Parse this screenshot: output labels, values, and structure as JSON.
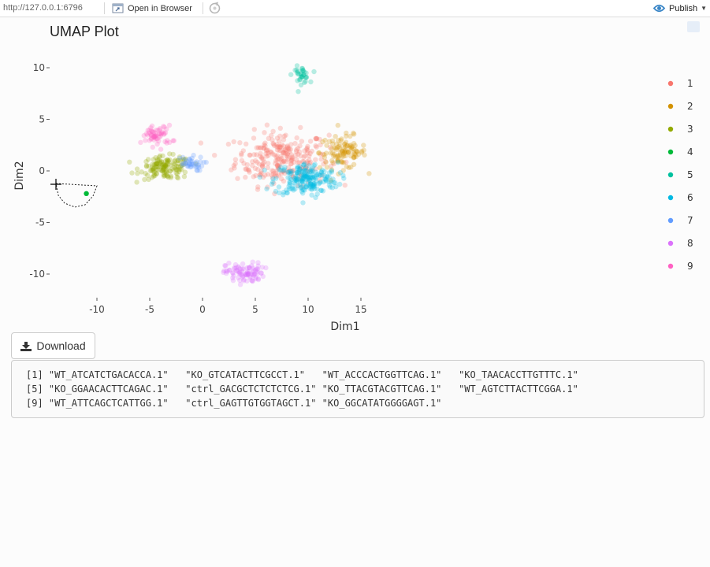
{
  "toolbar": {
    "url": "http://127.0.0.1:6796",
    "open_in_browser": "Open in Browser",
    "publish": "Publish"
  },
  "chart_data": {
    "type": "scatter",
    "title": "UMAP Plot",
    "xlabel": "Dim1",
    "ylabel": "Dim2",
    "xlim": [
      -12.5,
      17.5
    ],
    "ylim": [
      -11.8,
      11
    ],
    "x_ticks": [
      -10,
      -5,
      0,
      5,
      10,
      15
    ],
    "y_ticks": [
      -10,
      -5,
      0,
      5,
      10
    ],
    "legend_position": "right",
    "series": [
      {
        "name": "1",
        "color": "#F8766D",
        "center": [
          7.5,
          1.2
        ],
        "spread": [
          2.2,
          1.3
        ],
        "n": 260
      },
      {
        "name": "2",
        "color": "#D39200",
        "center": [
          13.3,
          1.8
        ],
        "spread": [
          1.1,
          0.8
        ],
        "n": 110
      },
      {
        "name": "3",
        "color": "#93AA00",
        "center": [
          -3.5,
          0.3
        ],
        "spread": [
          1.2,
          0.55
        ],
        "n": 140
      },
      {
        "name": "4",
        "color": "#00BA38",
        "center": [
          -11.0,
          -2.2
        ],
        "spread": [
          0,
          0
        ],
        "n": 1
      },
      {
        "name": "5",
        "color": "#00C19F",
        "center": [
          9.3,
          9.3
        ],
        "spread": [
          0.4,
          0.4
        ],
        "n": 35
      },
      {
        "name": "6",
        "color": "#00B9E3",
        "center": [
          9.8,
          -0.8
        ],
        "spread": [
          1.5,
          0.8
        ],
        "n": 200
      },
      {
        "name": "7",
        "color": "#619CFF",
        "center": [
          -1.3,
          0.7
        ],
        "spread": [
          0.7,
          0.35
        ],
        "n": 40
      },
      {
        "name": "8",
        "color": "#DB72FB",
        "center": [
          4.0,
          -9.9
        ],
        "spread": [
          0.9,
          0.5
        ],
        "n": 90
      },
      {
        "name": "9",
        "color": "#FF61C3",
        "center": [
          -4.3,
          3.4
        ],
        "spread": [
          0.7,
          0.5
        ],
        "n": 60
      }
    ]
  },
  "download": {
    "label": "Download"
  },
  "output": {
    "lines": [
      "[1] \"WT_ATCATCTGACACCA.1\"   \"KO_GTCATACTTCGCCT.1\"   \"WT_ACCCACTGGTTCAG.1\"   \"KO_TAACACCTTGTTTC.1\"",
      "[5] \"KO_GGAACACTTCAGAC.1\"   \"ctrl_GACGCTCTCTCTCG.1\" \"KO_TTACGTACGTTCAG.1\"   \"WT_AGTCTTACTTCGGA.1\"",
      "[9] \"WT_ATTCAGCTCATTGG.1\"   \"ctrl_GAGTTGTGGTAGCT.1\" \"KO_GGCATATGGGGAGT.1\""
    ]
  }
}
